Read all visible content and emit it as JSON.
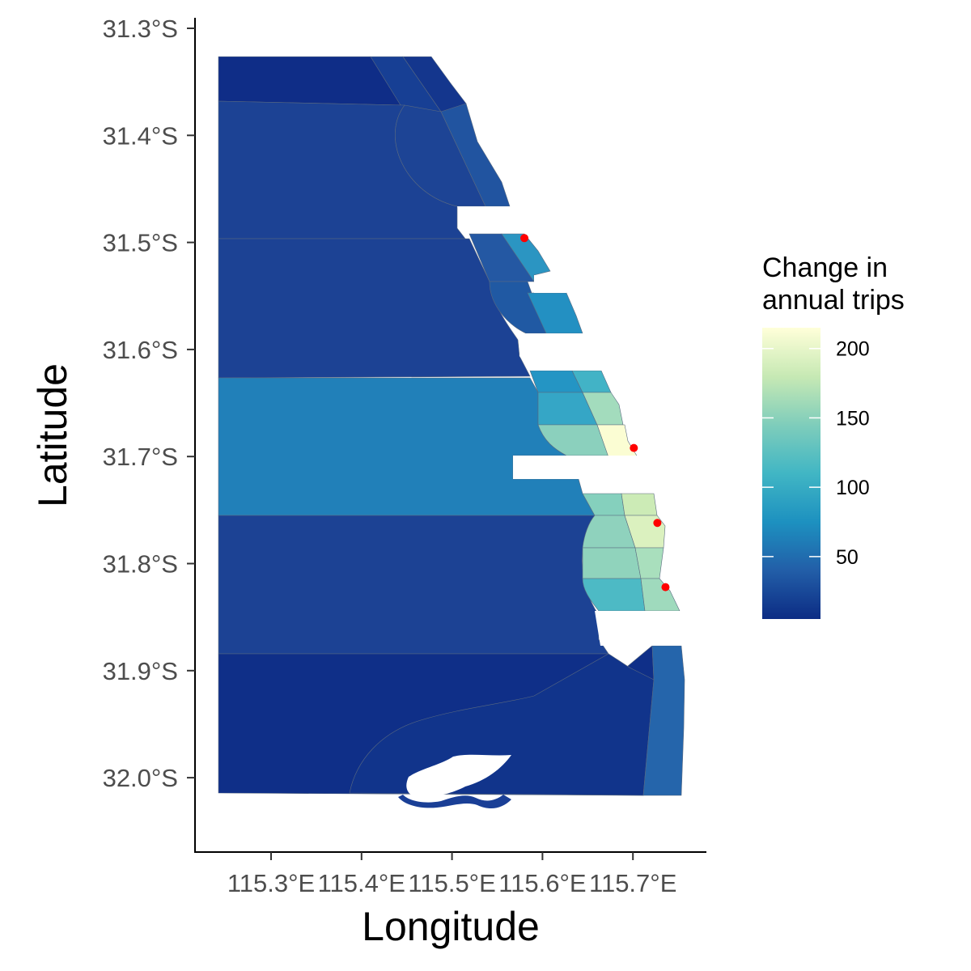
{
  "chart_data": {
    "type": "choropleth map",
    "xlabel": "Longitude",
    "ylabel": "Latitude",
    "x_ticks": [
      "115.3°E",
      "115.4°E",
      "115.5°E",
      "115.6°E",
      "115.7°E"
    ],
    "y_ticks": [
      "31.3°S",
      "31.4°S",
      "31.5°S",
      "31.6°S",
      "31.7°S",
      "31.8°S",
      "31.9°S",
      "32.0°S"
    ],
    "legend": {
      "title_lines": [
        "Change in",
        "annual trips"
      ],
      "breaks": [
        50,
        100,
        150,
        200
      ],
      "range": [
        5,
        215
      ],
      "colors": [
        "#0c2c84",
        "#225ea8",
        "#1d91c0",
        "#41b6c4",
        "#7fcdbb",
        "#c7e9b4",
        "#ffffd9"
      ],
      "position": "right"
    },
    "points": [
      {
        "lon": 115.58,
        "lat": -31.496
      },
      {
        "lon": 115.701,
        "lat": -31.692
      },
      {
        "lon": 115.727,
        "lat": -31.762
      },
      {
        "lon": 115.736,
        "lat": -31.822
      }
    ],
    "point_color": "#ff0000"
  }
}
